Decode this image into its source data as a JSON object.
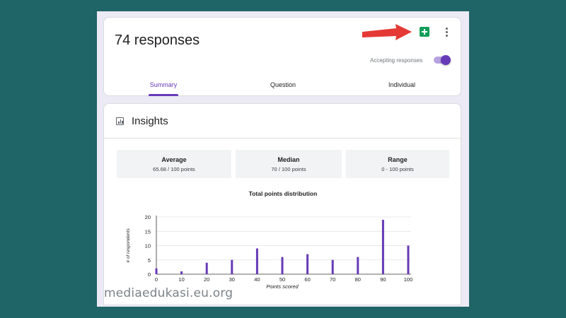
{
  "header": {
    "title": "74 responses",
    "accepting_label": "Accepting responses",
    "accepting_on": true,
    "tabs": [
      {
        "label": "Summary",
        "active": true
      },
      {
        "label": "Question",
        "active": false
      },
      {
        "label": "Individual",
        "active": false
      }
    ]
  },
  "insights": {
    "title": "Insights",
    "stats": [
      {
        "label": "Average",
        "value": "65.68 / 100 points"
      },
      {
        "label": "Median",
        "value": "70 / 100 points"
      },
      {
        "label": "Range",
        "value": "0 - 100 points"
      }
    ],
    "chart_title": "Total points distribution"
  },
  "chart_data": {
    "type": "bar",
    "title": "Total points distribution",
    "xlabel": "Points scored",
    "ylabel": "# of respondents",
    "x": [
      0,
      10,
      20,
      30,
      40,
      50,
      60,
      70,
      80,
      90,
      100
    ],
    "values": [
      2,
      1,
      4,
      5,
      9,
      6,
      7,
      5,
      6,
      19,
      10
    ],
    "x_ticks": [
      "0",
      "10",
      "20",
      "30",
      "40",
      "50",
      "60",
      "70",
      "80",
      "90",
      "100"
    ],
    "y_ticks": [
      "0",
      "5",
      "10",
      "15",
      "20"
    ],
    "ylim": [
      0,
      20
    ],
    "xlim": [
      0,
      100
    ],
    "bar_color": "#673ab7"
  },
  "watermark": "mediaedukasi.eu.org",
  "colors": {
    "accent": "#673ab7",
    "sheets_green": "#0f9d58",
    "background": "#1f6467",
    "annotation_arrow": "#e53935"
  },
  "icons": {
    "sheets": "google-sheets-icon",
    "more": "more-vert-icon",
    "insights": "bar-chart-icon",
    "arrow": "red-arrow-annotation"
  }
}
